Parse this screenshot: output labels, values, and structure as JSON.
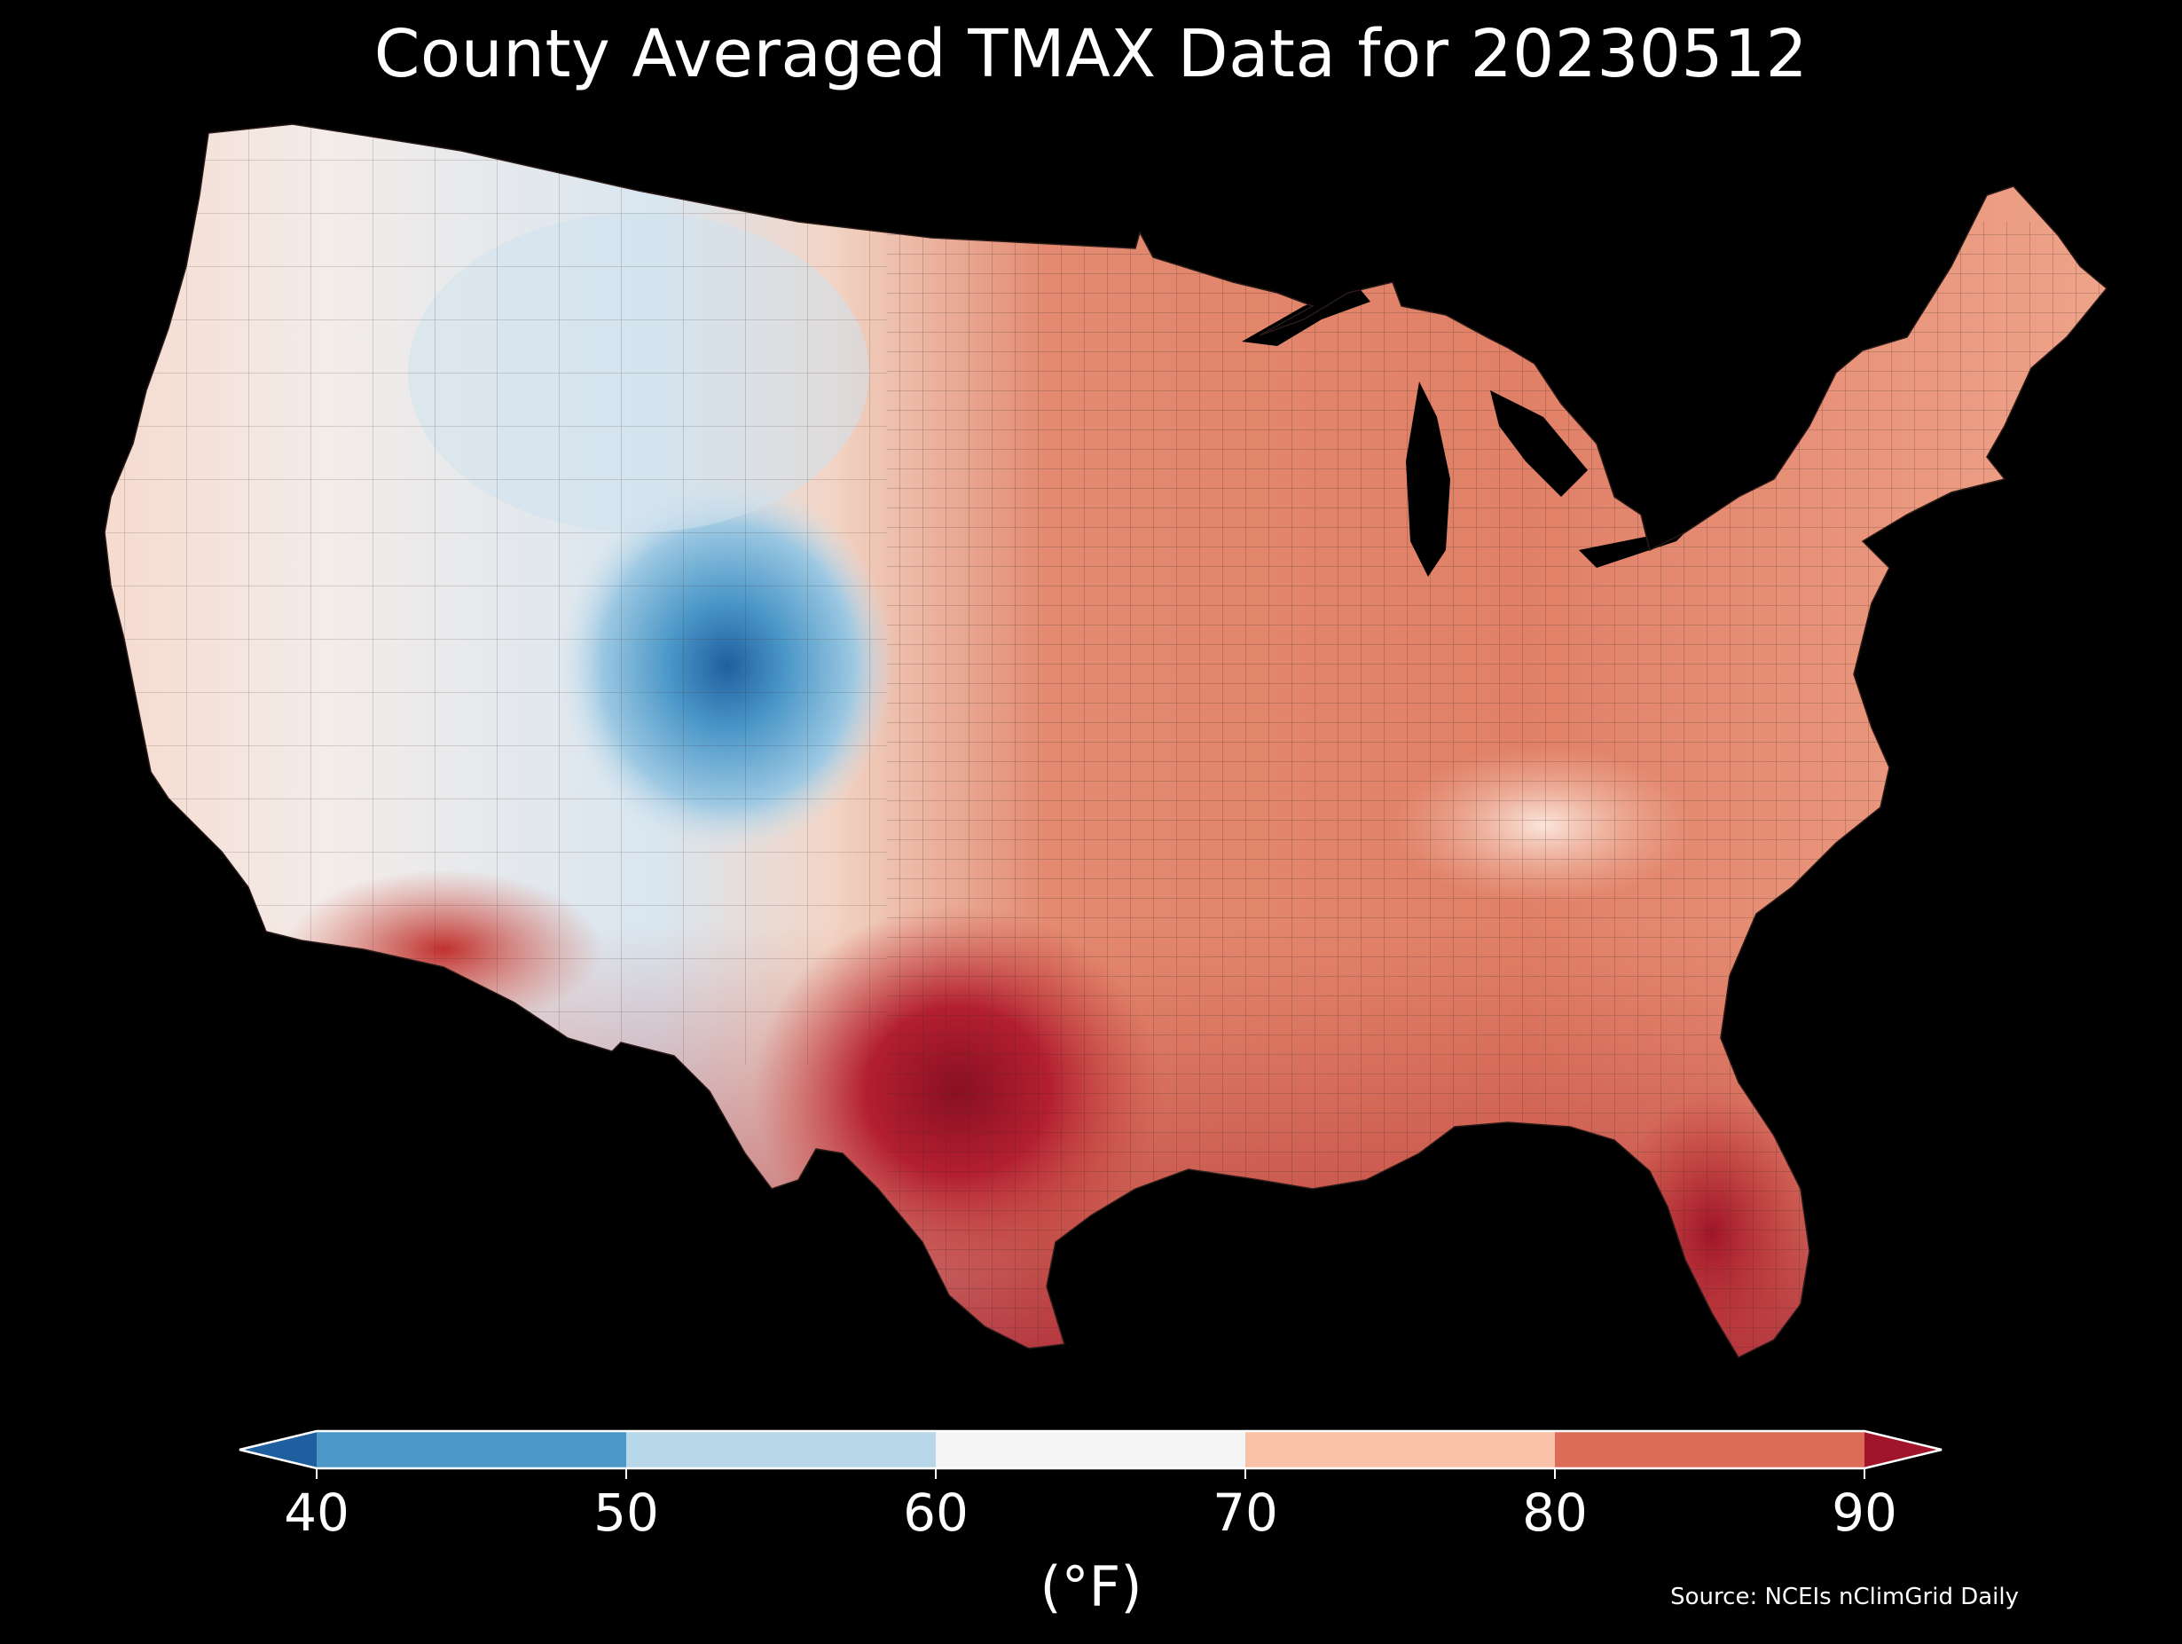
{
  "title": "County Averaged TMAX Data for 20230512",
  "colorbar": {
    "ticks": [
      "40",
      "50",
      "60",
      "70",
      "80",
      "90"
    ],
    "unit_label": "(°F)",
    "bins": [
      {
        "range": "<40",
        "color": "#1f5fa0"
      },
      {
        "range": "40-50",
        "color": "#4b97c8"
      },
      {
        "range": "50-60",
        "color": "#b8d7e9"
      },
      {
        "range": "60-70",
        "color": "#f5f5f5"
      },
      {
        "range": "70-80",
        "color": "#f7c2a7"
      },
      {
        "range": "80-90",
        "color": "#dc6b58"
      },
      {
        "range": ">90",
        "color": "#a0152a"
      }
    ]
  },
  "source": "Source: NCEIs nClimGrid Daily",
  "map": {
    "colors": {
      "background": "#000000",
      "county_border": "#3a2a28",
      "lake": "#000000"
    }
  }
}
